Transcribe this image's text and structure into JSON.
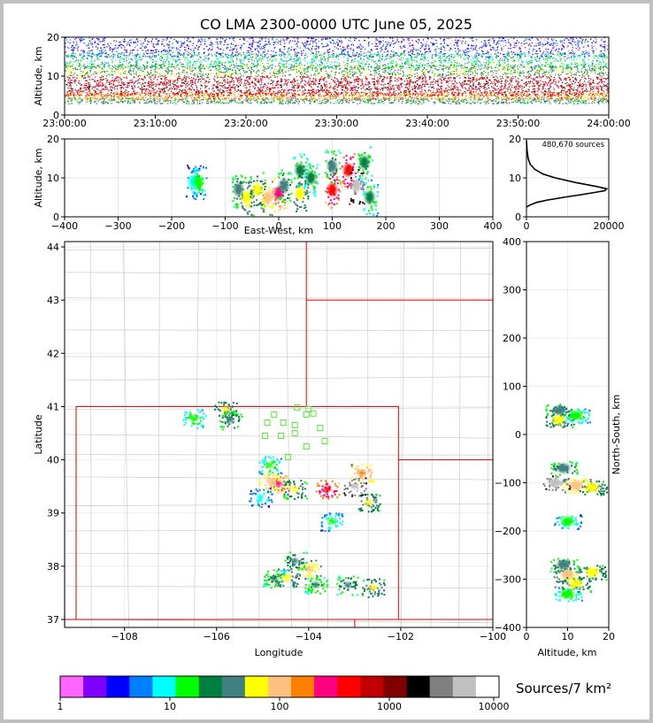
{
  "chart_data": [
    {
      "type": "heatmap",
      "name": "altitude-time",
      "title": "CO LMA 2300-0000 UTC June 05, 2025",
      "xlabel": "",
      "ylabel": "Altitude, km",
      "x_ticks": [
        "23:00:00",
        "23:10:00",
        "23:20:00",
        "23:30:00",
        "23:40:00",
        "23:50:00",
        "24:00:00"
      ],
      "y_ticks": [
        0,
        10,
        20
      ],
      "ylim": [
        0,
        20
      ]
    },
    {
      "type": "heatmap",
      "name": "altitude-east-west",
      "xlabel": "East-West, km",
      "ylabel": "Altitude, km",
      "xlim": [
        -400,
        400
      ],
      "ylim": [
        0,
        20
      ],
      "x_ticks": [
        -400,
        -300,
        -200,
        -100,
        0,
        100,
        200,
        300,
        400
      ],
      "y_ticks": [
        0,
        10,
        20
      ],
      "cells": [
        {
          "x": -160,
          "y": 9,
          "v": 12
        },
        {
          "x": -150,
          "y": 9,
          "v": 20
        },
        {
          "x": -75,
          "y": 7,
          "v": 40
        },
        {
          "x": -60,
          "y": 5,
          "v": 90
        },
        {
          "x": -40,
          "y": 7,
          "v": 60
        },
        {
          "x": -20,
          "y": 5,
          "v": 140
        },
        {
          "x": 0,
          "y": 6,
          "v": 300
        },
        {
          "x": 10,
          "y": 8,
          "v": 40
        },
        {
          "x": 40,
          "y": 12,
          "v": 30
        },
        {
          "x": 40,
          "y": 6,
          "v": 80
        },
        {
          "x": 60,
          "y": 10,
          "v": 25
        },
        {
          "x": 100,
          "y": 7,
          "v": 600
        },
        {
          "x": 100,
          "y": 13,
          "v": 40
        },
        {
          "x": 130,
          "y": 12,
          "v": 700
        },
        {
          "x": 145,
          "y": 8,
          "v": 8000
        },
        {
          "x": 160,
          "y": 14,
          "v": 30
        },
        {
          "x": 170,
          "y": 5,
          "v": 25
        }
      ]
    },
    {
      "type": "line",
      "name": "altitude-profile",
      "annotation": "480,670 sources",
      "xlim": [
        0,
        20000
      ],
      "ylim": [
        0,
        20
      ],
      "x_ticks": [
        0,
        20000
      ],
      "y_ticks": [
        0,
        10,
        20
      ],
      "x": [
        0,
        800,
        2500,
        5000,
        9000,
        14000,
        19000,
        19500,
        17000,
        12000,
        7000,
        4000,
        2000,
        900,
        400,
        150,
        0
      ],
      "y": [
        2.5,
        3.0,
        3.7,
        4.3,
        5.0,
        5.8,
        6.7,
        7.2,
        7.8,
        8.8,
        10.0,
        11.0,
        12.2,
        13.5,
        15.0,
        17.0,
        19.5
      ]
    },
    {
      "type": "heatmap",
      "name": "plan-view",
      "xlabel": "Longitude",
      "ylabel": "Latitude",
      "xlim": [
        -109.3,
        -100.0
      ],
      "ylim": [
        36.85,
        44.1
      ],
      "x_ticks": [
        -108,
        -106,
        -104,
        -102,
        -100
      ],
      "y_ticks": [
        37,
        38,
        39,
        40,
        41,
        42,
        43,
        44
      ],
      "stations": [
        {
          "lon": -104.45,
          "lat": 40.05
        },
        {
          "lon": -104.25,
          "lat": 40.98
        },
        {
          "lon": -104.05,
          "lat": 40.85
        },
        {
          "lon": -103.9,
          "lat": 40.87
        },
        {
          "lon": -104.75,
          "lat": 40.85
        },
        {
          "lon": -104.9,
          "lat": 40.7
        },
        {
          "lon": -104.55,
          "lat": 40.7
        },
        {
          "lon": -104.3,
          "lat": 40.65
        },
        {
          "lon": -104.0,
          "lat": 40.95
        },
        {
          "lon": -103.75,
          "lat": 40.6
        },
        {
          "lon": -104.95,
          "lat": 40.45
        },
        {
          "lon": -104.6,
          "lat": 40.45
        },
        {
          "lon": -104.3,
          "lat": 40.5
        },
        {
          "lon": -103.65,
          "lat": 40.35
        },
        {
          "lon": -104.05,
          "lat": 40.25
        }
      ],
      "cells": [
        {
          "lon": -106.5,
          "lat": 40.78,
          "v": 20
        },
        {
          "lon": -105.8,
          "lat": 40.95,
          "v": 60
        },
        {
          "lon": -105.7,
          "lat": 40.75,
          "v": 40
        },
        {
          "lon": -104.65,
          "lat": 39.55,
          "v": 300
        },
        {
          "lon": -104.85,
          "lat": 39.6,
          "v": 150
        },
        {
          "lon": -104.3,
          "lat": 39.45,
          "v": 60
        },
        {
          "lon": -104.85,
          "lat": 39.9,
          "v": 20
        },
        {
          "lon": -103.6,
          "lat": 39.45,
          "v": 500
        },
        {
          "lon": -103.0,
          "lat": 39.5,
          "v": 8000
        },
        {
          "lon": -102.85,
          "lat": 39.75,
          "v": 200
        },
        {
          "lon": -102.7,
          "lat": 39.2,
          "v": 60
        },
        {
          "lon": -103.5,
          "lat": 38.85,
          "v": 15
        },
        {
          "lon": -104.0,
          "lat": 37.95,
          "v": 120
        },
        {
          "lon": -104.3,
          "lat": 38.1,
          "v": 40
        },
        {
          "lon": -104.5,
          "lat": 37.8,
          "v": 80
        },
        {
          "lon": -104.75,
          "lat": 37.77,
          "v": 30
        },
        {
          "lon": -103.85,
          "lat": 37.65,
          "v": 30
        },
        {
          "lon": -103.15,
          "lat": 37.65,
          "v": 40
        },
        {
          "lon": -102.6,
          "lat": 37.6,
          "v": 60
        },
        {
          "lon": -105.05,
          "lat": 39.3,
          "v": 12
        }
      ]
    },
    {
      "type": "heatmap",
      "name": "north-south-altitude",
      "xlabel": "Altitude, km",
      "ylabel": "North-South, km",
      "xlim": [
        0,
        20
      ],
      "ylim": [
        -400,
        400
      ],
      "x_ticks": [
        0,
        10,
        20
      ],
      "y_ticks": [
        400,
        300,
        200,
        100,
        0,
        -100,
        -200,
        -300,
        -400
      ],
      "cells": [
        {
          "x": 8,
          "y": 50,
          "v": 40
        },
        {
          "x": 8,
          "y": 30,
          "v": 60
        },
        {
          "x": 12,
          "y": 40,
          "v": 20
        },
        {
          "x": 7,
          "y": -100,
          "v": 8000
        },
        {
          "x": 12,
          "y": -105,
          "v": 150
        },
        {
          "x": 16,
          "y": -110,
          "v": 60
        },
        {
          "x": 9,
          "y": -70,
          "v": 40
        },
        {
          "x": 10,
          "y": -180,
          "v": 15
        },
        {
          "x": 9,
          "y": -270,
          "v": 40
        },
        {
          "x": 10,
          "y": -290,
          "v": 100
        },
        {
          "x": 12,
          "y": -310,
          "v": 60
        },
        {
          "x": 16,
          "y": -285,
          "v": 60
        },
        {
          "x": 10,
          "y": -330,
          "v": 20
        }
      ]
    },
    {
      "type": "colorbar",
      "name": "colorbar",
      "label": "Sources/7 km²",
      "scale": "log",
      "range": [
        1,
        10000
      ],
      "tick_labels": [
        "1",
        "10",
        "100",
        "1000",
        "10000"
      ],
      "colors": [
        "#ff66ff",
        "#8000ff",
        "#0000ff",
        "#0080ff",
        "#00ffff",
        "#00ff00",
        "#008040",
        "#408080",
        "#ffff00",
        "#ffc080",
        "#ff8000",
        "#ff0080",
        "#ff0000",
        "#c00000",
        "#800000",
        "#000000",
        "#808080",
        "#c0c0c0",
        "#ffffff"
      ]
    }
  ]
}
